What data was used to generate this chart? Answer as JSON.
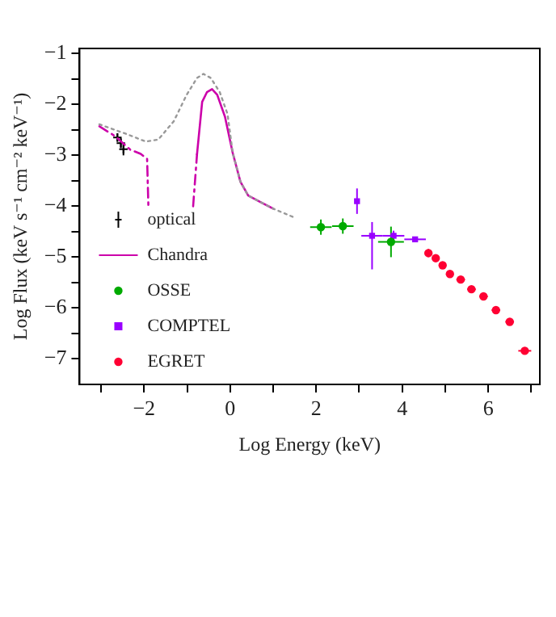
{
  "chart_data": {
    "type": "scatter",
    "xlabel": "Log Energy (keV)",
    "ylabel": "Log Flux (keV s⁻¹ cm⁻² keV⁻¹)",
    "xlim": [
      -3.5,
      7.2
    ],
    "ylim": [
      -7.5,
      -0.9
    ],
    "xticks": [
      {
        "value": -3,
        "label": null
      },
      -2,
      {
        "value": -1,
        "label": null
      },
      0,
      {
        "value": 1,
        "label": null
      },
      2,
      {
        "value": 3,
        "label": null
      },
      4,
      {
        "value": 5,
        "label": null
      },
      6,
      {
        "value": 7,
        "label": null
      }
    ],
    "yticks": [
      -7,
      {
        "value": -6.5,
        "label": null
      },
      -6,
      {
        "value": -5.5,
        "label": null
      },
      -5,
      {
        "value": -4.5,
        "label": null
      },
      -4,
      {
        "value": -3.5,
        "label": null
      },
      -3,
      {
        "value": -2.5,
        "label": null
      },
      -2,
      {
        "value": -1.5,
        "label": null
      },
      -1
    ],
    "grid": false,
    "legend": "bottom left",
    "series": [
      {
        "type": "line",
        "color": "#999999",
        "line_style": "dotted",
        "x": [
          -3.04,
          -2.38,
          -1.96,
          -1.67,
          -1.31,
          -1.01,
          -0.77,
          -0.62,
          -0.45,
          -0.24,
          -0.06,
          0.06,
          0.24,
          0.42,
          0.71,
          1.01,
          1.49
        ],
        "values": [
          -2.39,
          -2.59,
          -2.73,
          -2.69,
          -2.33,
          -1.81,
          -1.48,
          -1.4,
          -1.48,
          -1.76,
          -2.19,
          -2.95,
          -3.52,
          -3.79,
          -3.92,
          -4.05,
          -4.22
        ]
      },
      {
        "type": "line",
        "color": "#cc00aa",
        "line_style": "dashed",
        "x": [
          -3.04,
          -2.68,
          -2.32,
          -2.08,
          -1.93,
          -1.9
        ],
        "values": [
          -2.43,
          -2.62,
          -2.89,
          -2.97,
          -3.07,
          -4.0
        ]
      },
      {
        "type": "line",
        "color": "#cc00aa",
        "line_style": "dashed",
        "x": [
          -0.86,
          -0.77
        ],
        "values": [
          -4.0,
          -2.98
        ]
      },
      {
        "name": "optical",
        "color": "#000000",
        "marker": "cross",
        "x": [
          -2.62,
          -2.54,
          -2.48
        ],
        "values": [
          -2.65,
          -2.76,
          -2.88
        ],
        "errors": [
          0.08,
          0.1,
          0.12
        ]
      },
      {
        "name": "Chandra",
        "type": "line",
        "color": "#cc00aa",
        "line_style": "solid",
        "x": [
          -0.77,
          -0.65,
          -0.54,
          -0.42,
          -0.3,
          -0.12,
          0.06,
          0.24,
          0.42,
          0.71,
          1.01
        ],
        "values": [
          -2.98,
          -1.95,
          -1.76,
          -1.7,
          -1.81,
          -2.24,
          -2.95,
          -3.52,
          -3.79,
          -3.92,
          -4.05
        ]
      },
      {
        "name": "OSSE",
        "color": "#00aa00",
        "marker": "circle",
        "x": [
          2.11,
          2.62,
          3.74
        ],
        "values": [
          -4.41,
          -4.39,
          -4.7
        ],
        "errors": [
          0.15,
          0.15,
          0.3
        ],
        "xerrors": [
          0.25,
          0.25,
          0.3
        ]
      },
      {
        "name": "COMPTEL",
        "color": "#9900ff",
        "marker": "square",
        "x": [
          2.95,
          3.3,
          3.8,
          4.3
        ],
        "values": [
          -3.9,
          -4.58,
          -4.58,
          -4.65
        ],
        "errors": [
          0.25,
          [
            -5.24,
            -4.31
          ],
          0.1,
          0.05
        ],
        "xerrors": [
          0.05,
          0.25,
          0.25,
          0.25
        ]
      },
      {
        "name": "EGRET",
        "color": "#ff0033",
        "marker": "circle",
        "x": [
          4.61,
          4.78,
          4.94,
          5.11,
          5.36,
          5.61,
          5.89,
          6.18,
          6.5,
          6.85
        ],
        "values": [
          -4.92,
          -5.02,
          -5.16,
          -5.33,
          -5.44,
          -5.63,
          -5.77,
          -6.04,
          -6.27,
          -6.84
        ],
        "errors": [
          0.08,
          0.05,
          0.04,
          0.04,
          0.04,
          0.04,
          0.04,
          0.04,
          0.04,
          0.04
        ],
        "xerrors": [
          0.08,
          0.08,
          0.08,
          0.08,
          0.1,
          0.1,
          0.1,
          0.1,
          0.1,
          0.15
        ]
      }
    ]
  }
}
